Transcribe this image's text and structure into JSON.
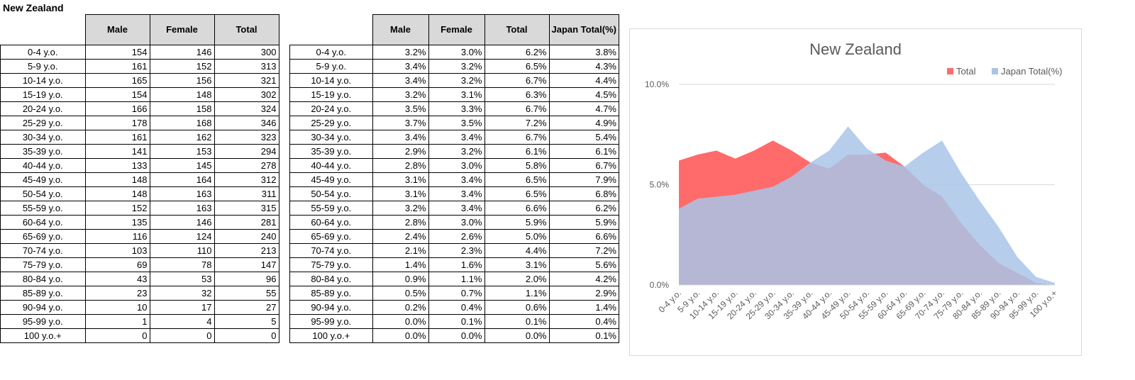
{
  "sheet_title": "New Zealand",
  "table_counts": {
    "headers": [
      "Male",
      "Female",
      "Total"
    ],
    "rows": [
      [
        "0-4 y.o.",
        "154",
        "146",
        "300"
      ],
      [
        "5-9 y.o.",
        "161",
        "152",
        "313"
      ],
      [
        "10-14 y.o.",
        "165",
        "156",
        "321"
      ],
      [
        "15-19 y.o.",
        "154",
        "148",
        "302"
      ],
      [
        "20-24 y.o.",
        "166",
        "158",
        "324"
      ],
      [
        "25-29 y.o.",
        "178",
        "168",
        "346"
      ],
      [
        "30-34 y.o.",
        "161",
        "162",
        "323"
      ],
      [
        "35-39 y.o.",
        "141",
        "153",
        "294"
      ],
      [
        "40-44 y.o.",
        "133",
        "145",
        "278"
      ],
      [
        "45-49 y.o.",
        "148",
        "164",
        "312"
      ],
      [
        "50-54 y.o.",
        "148",
        "163",
        "311"
      ],
      [
        "55-59 y.o.",
        "152",
        "163",
        "315"
      ],
      [
        "60-64 y.o.",
        "135",
        "146",
        "281"
      ],
      [
        "65-69 y.o.",
        "116",
        "124",
        "240"
      ],
      [
        "70-74 y.o.",
        "103",
        "110",
        "213"
      ],
      [
        "75-79 y.o.",
        "69",
        "78",
        "147"
      ],
      [
        "80-84 y.o.",
        "43",
        "53",
        "96"
      ],
      [
        "85-89 y.o.",
        "23",
        "32",
        "55"
      ],
      [
        "90-94 y.o.",
        "10",
        "17",
        "27"
      ],
      [
        "95-99 y.o.",
        "1",
        "4",
        "5"
      ],
      [
        "100 y.o.+",
        "0",
        "0",
        "0"
      ]
    ]
  },
  "table_percent": {
    "headers": [
      "Male",
      "Female",
      "Total",
      "Japan Total(%)"
    ],
    "rows": [
      [
        "0-4 y.o.",
        "3.2%",
        "3.0%",
        "6.2%",
        "3.8%"
      ],
      [
        "5-9 y.o.",
        "3.4%",
        "3.2%",
        "6.5%",
        "4.3%"
      ],
      [
        "10-14 y.o.",
        "3.4%",
        "3.2%",
        "6.7%",
        "4.4%"
      ],
      [
        "15-19 y.o.",
        "3.2%",
        "3.1%",
        "6.3%",
        "4.5%"
      ],
      [
        "20-24 y.o.",
        "3.5%",
        "3.3%",
        "6.7%",
        "4.7%"
      ],
      [
        "25-29 y.o.",
        "3.7%",
        "3.5%",
        "7.2%",
        "4.9%"
      ],
      [
        "30-34 y.o.",
        "3.4%",
        "3.4%",
        "6.7%",
        "5.4%"
      ],
      [
        "35-39 y.o.",
        "2.9%",
        "3.2%",
        "6.1%",
        "6.1%"
      ],
      [
        "40-44 y.o.",
        "2.8%",
        "3.0%",
        "5.8%",
        "6.7%"
      ],
      [
        "45-49 y.o.",
        "3.1%",
        "3.4%",
        "6.5%",
        "7.9%"
      ],
      [
        "50-54 y.o.",
        "3.1%",
        "3.4%",
        "6.5%",
        "6.8%"
      ],
      [
        "55-59 y.o.",
        "3.2%",
        "3.4%",
        "6.6%",
        "6.2%"
      ],
      [
        "60-64 y.o.",
        "2.8%",
        "3.0%",
        "5.9%",
        "5.9%"
      ],
      [
        "65-69 y.o.",
        "2.4%",
        "2.6%",
        "5.0%",
        "6.6%"
      ],
      [
        "70-74 y.o.",
        "2.1%",
        "2.3%",
        "4.4%",
        "7.2%"
      ],
      [
        "75-79 y.o.",
        "1.4%",
        "1.6%",
        "3.1%",
        "5.6%"
      ],
      [
        "80-84 y.o.",
        "0.9%",
        "1.1%",
        "2.0%",
        "4.2%"
      ],
      [
        "85-89 y.o.",
        "0.5%",
        "0.7%",
        "1.1%",
        "2.9%"
      ],
      [
        "90-94 y.o.",
        "0.2%",
        "0.4%",
        "0.6%",
        "1.4%"
      ],
      [
        "95-99 y.o.",
        "0.0%",
        "0.1%",
        "0.1%",
        "0.4%"
      ],
      [
        "100 y.o.+",
        "0.0%",
        "0.0%",
        "0.0%",
        "0.1%"
      ]
    ]
  },
  "chart_data": {
    "type": "area",
    "title": "New Zealand",
    "categories": [
      "0-4 y.o.",
      "5-9 y.o.",
      "10-14 y.o.",
      "15-19 y.o.",
      "20-24 y.o.",
      "25-29 y.o.",
      "30-34 y.o.",
      "35-39 y.o.",
      "40-44 y.o.",
      "45-49 y.o.",
      "50-54 y.o.",
      "55-59 y.o.",
      "60-64 y.o.",
      "65-69 y.o.",
      "70-74 y.o.",
      "75-79 y.o.",
      "80-84 y.o.",
      "85-89 y.o.",
      "90-94 y.o.",
      "95-99 y.o.",
      "100 y.o.+"
    ],
    "series": [
      {
        "name": "Total",
        "color": "#ff6b6b",
        "values": [
          6.2,
          6.5,
          6.7,
          6.3,
          6.7,
          7.2,
          6.7,
          6.1,
          5.8,
          6.5,
          6.5,
          6.6,
          5.9,
          5.0,
          4.4,
          3.1,
          2.0,
          1.1,
          0.6,
          0.1,
          0.0
        ]
      },
      {
        "name": "Japan Total(%)",
        "color": "#a9c4e8",
        "values": [
          3.8,
          4.3,
          4.4,
          4.5,
          4.7,
          4.9,
          5.4,
          6.1,
          6.7,
          7.9,
          6.8,
          6.2,
          5.9,
          6.6,
          7.2,
          5.6,
          4.2,
          2.9,
          1.4,
          0.4,
          0.1
        ]
      }
    ],
    "yticks": [
      "0.0%",
      "5.0%",
      "10.0%"
    ],
    "ytick_values": [
      0,
      5,
      10
    ],
    "ylim": [
      0,
      10
    ],
    "legend_position": "top-right",
    "grid": true
  }
}
